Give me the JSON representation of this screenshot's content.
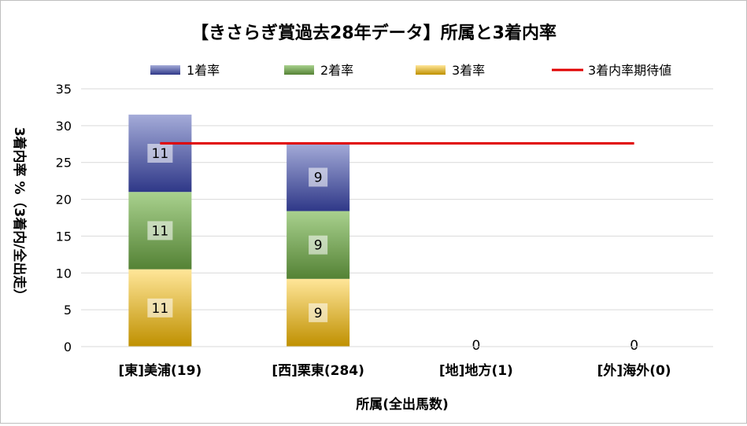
{
  "chart_data": {
    "type": "bar",
    "title": "【きさらぎ賞過去28年データ】所属と3着内率",
    "xlabel": "所属(全出馬数)",
    "ylabel": "3着内率 %（3着内/全出走）",
    "categories": [
      "[東]美浦(19)",
      "[西]栗東(284)",
      "[地]地方(1)",
      "[外]海外(0)"
    ],
    "stacked": true,
    "series": [
      {
        "name": "3着率",
        "values": [
          10.5,
          9.2,
          0,
          0
        ],
        "labels": [
          "11",
          "9",
          "0",
          "0"
        ],
        "color_top": "#ffe699",
        "color_bottom": "#bf9000"
      },
      {
        "name": "2着率",
        "values": [
          10.5,
          9.2,
          0,
          0
        ],
        "labels": [
          "11",
          "9",
          "",
          ""
        ],
        "color_top": "#a9d18e",
        "color_bottom": "#548235"
      },
      {
        "name": "1着率",
        "values": [
          10.5,
          9.2,
          0,
          0
        ],
        "labels": [
          "11",
          "9",
          "",
          ""
        ],
        "color_top": "#a4abd8",
        "color_bottom": "#2f3888"
      }
    ],
    "expected_line": {
      "name": "3着内率期待値",
      "value": 27.6,
      "color": "#e00000"
    },
    "legend_order": [
      "1着率",
      "2着率",
      "3着率",
      "3着内率期待値"
    ],
    "legend_position": "top",
    "ylim": [
      0,
      35
    ],
    "yticks": [
      0,
      5,
      10,
      15,
      20,
      25,
      30,
      35
    ],
    "grid": true
  }
}
